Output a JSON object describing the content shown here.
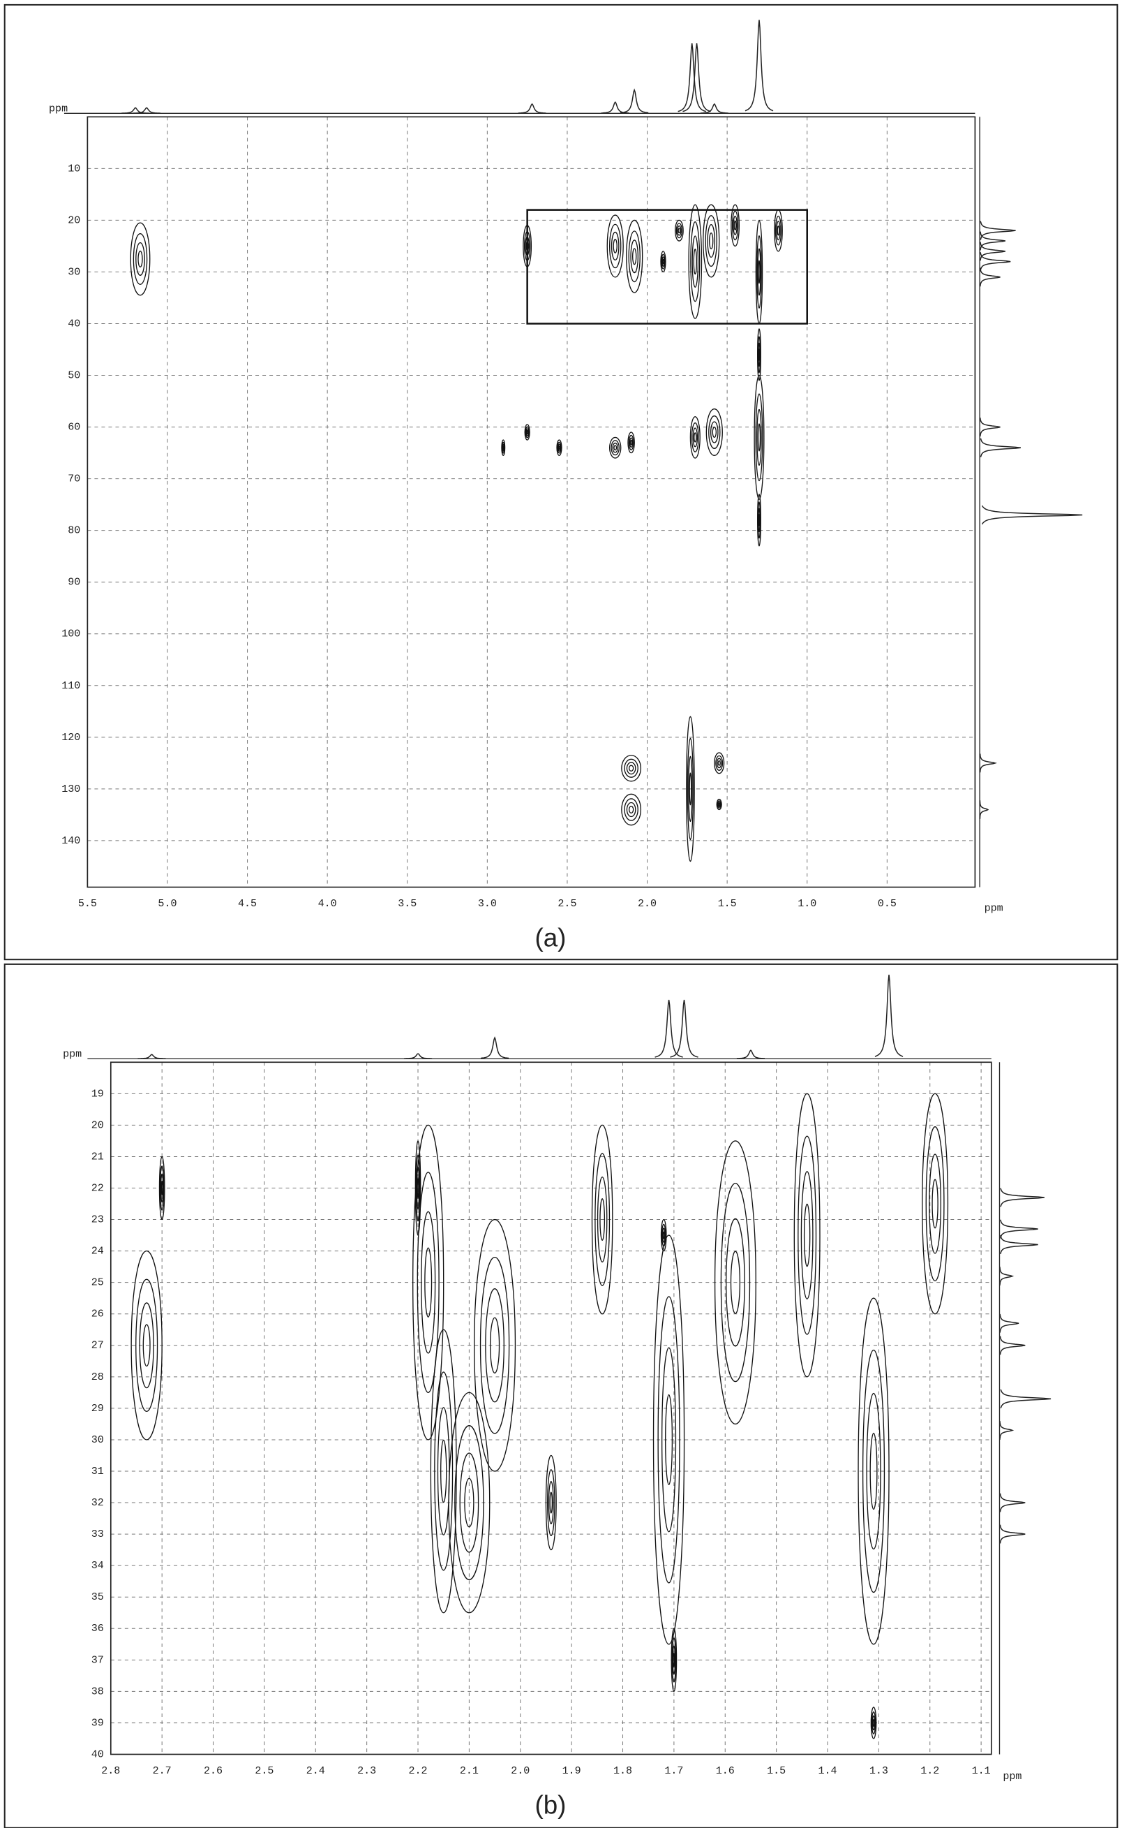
{
  "chart_data": [
    {
      "type": "contour",
      "caption": "(a)",
      "x_label": "ppm",
      "y_label": "ppm",
      "color": "#111",
      "grid": true,
      "xlim": [
        5.5,
        -0.05
      ],
      "ylim": [
        0,
        149
      ],
      "xticks": [
        5.5,
        {
          "value": 5,
          "label": "5.0"
        },
        4.5,
        {
          "value": 4,
          "label": "4.0"
        },
        3.5,
        {
          "value": 3,
          "label": "3.0"
        },
        2.5,
        {
          "value": 2,
          "label": "2.0"
        },
        1.5,
        {
          "value": 1,
          "label": "1.0"
        },
        0.5
      ],
      "yticks": [
        10,
        20,
        30,
        40,
        50,
        60,
        70,
        80,
        90,
        100,
        110,
        120,
        130,
        140
      ],
      "highlight_box": {
        "x": [
          2.75,
          1.0
        ],
        "y": [
          18,
          40
        ]
      },
      "peaks": {
        "x": [
          5.17,
          2.75,
          2.2,
          2.08,
          1.9,
          1.8,
          1.7,
          1.6,
          1.45,
          1.3,
          1.18,
          1.3,
          1.3,
          1.3,
          2.9,
          2.75,
          2.55,
          2.2,
          2.1,
          1.7,
          1.58,
          2.1,
          2.1,
          1.73,
          1.55,
          1.55
        ],
        "y": [
          27.5,
          25,
          25,
          27,
          28,
          22,
          28,
          24,
          21,
          30,
          22,
          62,
          46,
          78,
          64,
          61,
          64,
          64,
          63,
          62,
          61,
          126,
          134,
          130,
          125,
          133
        ],
        "x_width": [
          0.12,
          0.05,
          0.1,
          0.1,
          0.03,
          0.05,
          0.08,
          0.1,
          0.05,
          0.04,
          0.05,
          0.06,
          0.02,
          0.02,
          0.02,
          0.03,
          0.03,
          0.07,
          0.04,
          0.06,
          0.1,
          0.12,
          0.12,
          0.05,
          0.06,
          0.03
        ],
        "y_width": [
          14,
          8,
          12,
          14,
          4,
          4,
          22,
          14,
          8,
          20,
          8,
          24,
          10,
          10,
          3,
          3,
          3,
          4,
          4,
          8,
          9,
          5,
          6,
          28,
          4,
          2
        ]
      },
      "top_projection": {
        "x": [
          5.2,
          5.13,
          2.72,
          2.2,
          2.08,
          1.72,
          1.69,
          1.58,
          1.3
        ],
        "values": [
          6,
          6,
          10,
          12,
          25,
          75,
          75,
          10,
          100
        ]
      },
      "right_projection": {
        "y": [
          22,
          24,
          26,
          28,
          31,
          60,
          64,
          77,
          125,
          134
        ],
        "values": [
          35,
          25,
          25,
          30,
          20,
          20,
          40,
          100,
          15,
          8
        ]
      }
    },
    {
      "type": "contour",
      "caption": "(b)",
      "x_label": "ppm",
      "y_label": "ppm",
      "color": "#111",
      "grid": true,
      "xlim": [
        2.8,
        1.08
      ],
      "ylim": [
        18,
        40
      ],
      "xticks": [
        2.8,
        2.7,
        2.6,
        2.5,
        2.4,
        2.3,
        2.2,
        2.1,
        {
          "value": 2,
          "label": "2.0"
        },
        1.9,
        1.8,
        1.7,
        1.6,
        1.5,
        1.4,
        1.3,
        1.2,
        1.1
      ],
      "yticks": [
        19,
        20,
        21,
        22,
        23,
        24,
        25,
        26,
        27,
        28,
        29,
        30,
        31,
        32,
        33,
        34,
        35,
        36,
        37,
        38,
        39,
        40
      ],
      "peaks": {
        "x": [
          2.73,
          2.7,
          2.2,
          2.18,
          2.15,
          2.05,
          2.1,
          1.94,
          1.84,
          1.71,
          1.7,
          1.72,
          1.58,
          1.44,
          1.31,
          1.31,
          1.19
        ],
        "y": [
          27,
          22,
          22,
          25,
          31,
          27,
          32,
          32,
          23,
          30,
          37,
          23.5,
          25,
          23.5,
          31,
          39,
          22.5
        ],
        "x_width": [
          0.06,
          0.01,
          0.01,
          0.06,
          0.05,
          0.08,
          0.08,
          0.02,
          0.04,
          0.06,
          0.01,
          0.01,
          0.08,
          0.05,
          0.06,
          0.01,
          0.05
        ],
        "y_width": [
          6,
          2,
          3,
          10,
          9,
          8,
          7,
          3,
          6,
          13,
          2,
          1,
          9,
          9,
          11,
          1,
          7
        ]
      },
      "top_projection": {
        "x": [
          2.72,
          2.2,
          2.05,
          1.71,
          1.68,
          1.55,
          1.28
        ],
        "values": [
          5,
          6,
          25,
          70,
          70,
          10,
          100
        ]
      },
      "right_projection": {
        "y": [
          22.3,
          23.3,
          23.8,
          24.8,
          26.3,
          27,
          28.7,
          29.7,
          32,
          33
        ],
        "values": [
          70,
          60,
          60,
          20,
          30,
          40,
          80,
          20,
          40,
          40
        ]
      }
    }
  ]
}
